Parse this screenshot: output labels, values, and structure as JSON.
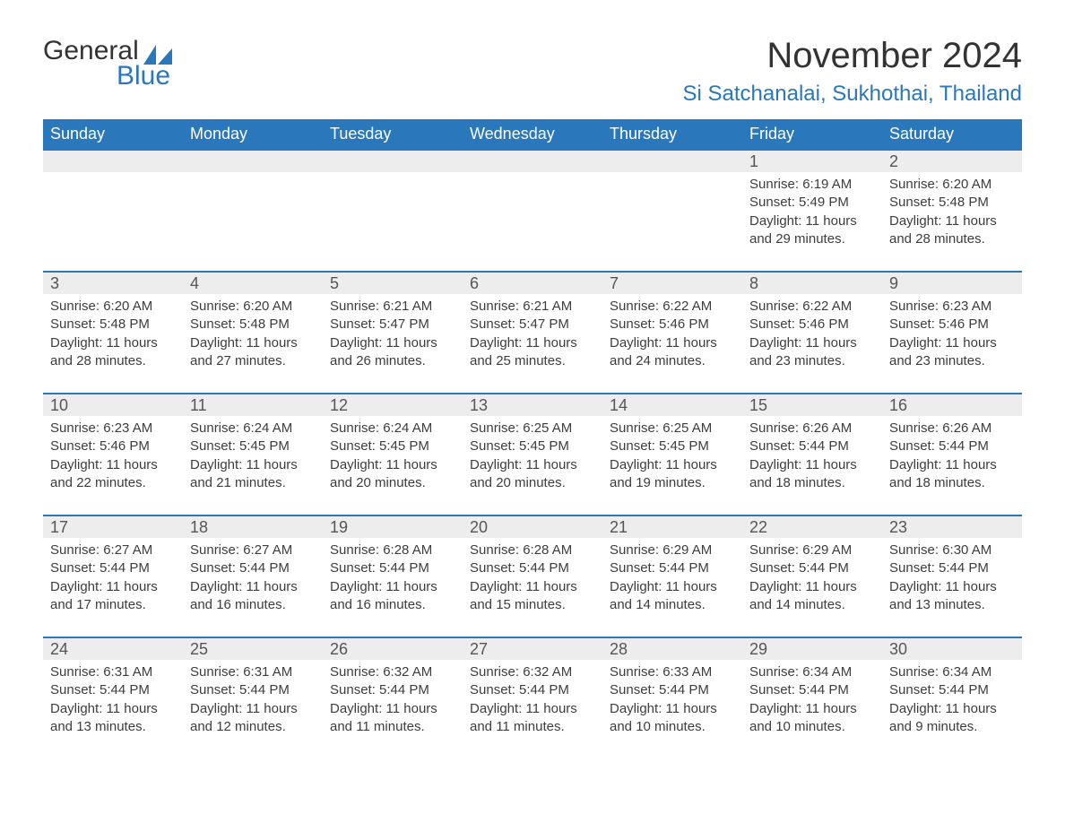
{
  "logo": {
    "word1": "General",
    "word2": "Blue",
    "sail_color": "#2a77bb"
  },
  "title": "November 2024",
  "location": "Si Satchanalai, Sukhothai, Thailand",
  "colors": {
    "header_bg": "#2a77bb",
    "header_text": "#ffffff",
    "week_border": "#2a77bb",
    "daynum_bg": "#ededed",
    "text": "#333333",
    "accent": "#2a77bb"
  },
  "typography": {
    "title_fontsize": 40,
    "location_fontsize": 24,
    "header_fontsize": 18,
    "daynum_fontsize": 18,
    "body_fontsize": 15,
    "font_family": "Segoe UI, Arial, sans-serif"
  },
  "day_headers": [
    "Sunday",
    "Monday",
    "Tuesday",
    "Wednesday",
    "Thursday",
    "Friday",
    "Saturday"
  ],
  "weeks": [
    [
      null,
      null,
      null,
      null,
      null,
      {
        "n": "1",
        "sunrise": "Sunrise: 6:19 AM",
        "sunset": "Sunset: 5:49 PM",
        "daylight": "Daylight: 11 hours and 29 minutes."
      },
      {
        "n": "2",
        "sunrise": "Sunrise: 6:20 AM",
        "sunset": "Sunset: 5:48 PM",
        "daylight": "Daylight: 11 hours and 28 minutes."
      }
    ],
    [
      {
        "n": "3",
        "sunrise": "Sunrise: 6:20 AM",
        "sunset": "Sunset: 5:48 PM",
        "daylight": "Daylight: 11 hours and 28 minutes."
      },
      {
        "n": "4",
        "sunrise": "Sunrise: 6:20 AM",
        "sunset": "Sunset: 5:48 PM",
        "daylight": "Daylight: 11 hours and 27 minutes."
      },
      {
        "n": "5",
        "sunrise": "Sunrise: 6:21 AM",
        "sunset": "Sunset: 5:47 PM",
        "daylight": "Daylight: 11 hours and 26 minutes."
      },
      {
        "n": "6",
        "sunrise": "Sunrise: 6:21 AM",
        "sunset": "Sunset: 5:47 PM",
        "daylight": "Daylight: 11 hours and 25 minutes."
      },
      {
        "n": "7",
        "sunrise": "Sunrise: 6:22 AM",
        "sunset": "Sunset: 5:46 PM",
        "daylight": "Daylight: 11 hours and 24 minutes."
      },
      {
        "n": "8",
        "sunrise": "Sunrise: 6:22 AM",
        "sunset": "Sunset: 5:46 PM",
        "daylight": "Daylight: 11 hours and 23 minutes."
      },
      {
        "n": "9",
        "sunrise": "Sunrise: 6:23 AM",
        "sunset": "Sunset: 5:46 PM",
        "daylight": "Daylight: 11 hours and 23 minutes."
      }
    ],
    [
      {
        "n": "10",
        "sunrise": "Sunrise: 6:23 AM",
        "sunset": "Sunset: 5:46 PM",
        "daylight": "Daylight: 11 hours and 22 minutes."
      },
      {
        "n": "11",
        "sunrise": "Sunrise: 6:24 AM",
        "sunset": "Sunset: 5:45 PM",
        "daylight": "Daylight: 11 hours and 21 minutes."
      },
      {
        "n": "12",
        "sunrise": "Sunrise: 6:24 AM",
        "sunset": "Sunset: 5:45 PM",
        "daylight": "Daylight: 11 hours and 20 minutes."
      },
      {
        "n": "13",
        "sunrise": "Sunrise: 6:25 AM",
        "sunset": "Sunset: 5:45 PM",
        "daylight": "Daylight: 11 hours and 20 minutes."
      },
      {
        "n": "14",
        "sunrise": "Sunrise: 6:25 AM",
        "sunset": "Sunset: 5:45 PM",
        "daylight": "Daylight: 11 hours and 19 minutes."
      },
      {
        "n": "15",
        "sunrise": "Sunrise: 6:26 AM",
        "sunset": "Sunset: 5:44 PM",
        "daylight": "Daylight: 11 hours and 18 minutes."
      },
      {
        "n": "16",
        "sunrise": "Sunrise: 6:26 AM",
        "sunset": "Sunset: 5:44 PM",
        "daylight": "Daylight: 11 hours and 18 minutes."
      }
    ],
    [
      {
        "n": "17",
        "sunrise": "Sunrise: 6:27 AM",
        "sunset": "Sunset: 5:44 PM",
        "daylight": "Daylight: 11 hours and 17 minutes."
      },
      {
        "n": "18",
        "sunrise": "Sunrise: 6:27 AM",
        "sunset": "Sunset: 5:44 PM",
        "daylight": "Daylight: 11 hours and 16 minutes."
      },
      {
        "n": "19",
        "sunrise": "Sunrise: 6:28 AM",
        "sunset": "Sunset: 5:44 PM",
        "daylight": "Daylight: 11 hours and 16 minutes."
      },
      {
        "n": "20",
        "sunrise": "Sunrise: 6:28 AM",
        "sunset": "Sunset: 5:44 PM",
        "daylight": "Daylight: 11 hours and 15 minutes."
      },
      {
        "n": "21",
        "sunrise": "Sunrise: 6:29 AM",
        "sunset": "Sunset: 5:44 PM",
        "daylight": "Daylight: 11 hours and 14 minutes."
      },
      {
        "n": "22",
        "sunrise": "Sunrise: 6:29 AM",
        "sunset": "Sunset: 5:44 PM",
        "daylight": "Daylight: 11 hours and 14 minutes."
      },
      {
        "n": "23",
        "sunrise": "Sunrise: 6:30 AM",
        "sunset": "Sunset: 5:44 PM",
        "daylight": "Daylight: 11 hours and 13 minutes."
      }
    ],
    [
      {
        "n": "24",
        "sunrise": "Sunrise: 6:31 AM",
        "sunset": "Sunset: 5:44 PM",
        "daylight": "Daylight: 11 hours and 13 minutes."
      },
      {
        "n": "25",
        "sunrise": "Sunrise: 6:31 AM",
        "sunset": "Sunset: 5:44 PM",
        "daylight": "Daylight: 11 hours and 12 minutes."
      },
      {
        "n": "26",
        "sunrise": "Sunrise: 6:32 AM",
        "sunset": "Sunset: 5:44 PM",
        "daylight": "Daylight: 11 hours and 11 minutes."
      },
      {
        "n": "27",
        "sunrise": "Sunrise: 6:32 AM",
        "sunset": "Sunset: 5:44 PM",
        "daylight": "Daylight: 11 hours and 11 minutes."
      },
      {
        "n": "28",
        "sunrise": "Sunrise: 6:33 AM",
        "sunset": "Sunset: 5:44 PM",
        "daylight": "Daylight: 11 hours and 10 minutes."
      },
      {
        "n": "29",
        "sunrise": "Sunrise: 6:34 AM",
        "sunset": "Sunset: 5:44 PM",
        "daylight": "Daylight: 11 hours and 10 minutes."
      },
      {
        "n": "30",
        "sunrise": "Sunrise: 6:34 AM",
        "sunset": "Sunset: 5:44 PM",
        "daylight": "Daylight: 11 hours and 9 minutes."
      }
    ]
  ]
}
